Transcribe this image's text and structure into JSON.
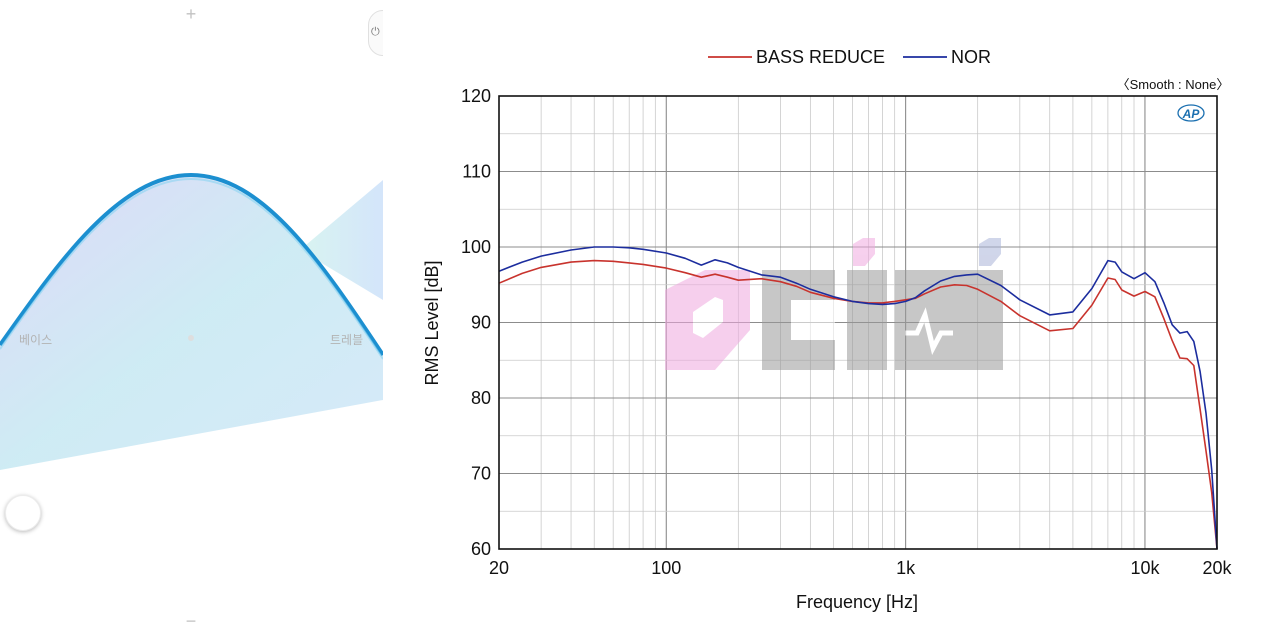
{
  "eq_panel": {
    "plus": "+",
    "minus": "−",
    "bass_label": "베이스",
    "treble_label": "트레블",
    "power_icon": "power-icon",
    "accent": "#1c8fd0"
  },
  "chart_data": {
    "type": "line",
    "xlabel": "Frequency [Hz]",
    "ylabel": "RMS Level [dB]",
    "x_scale": "log",
    "xlim": [
      20,
      20000
    ],
    "ylim": [
      60,
      120
    ],
    "yticks": [
      "60",
      "70",
      "80",
      "90",
      "100",
      "110",
      "120"
    ],
    "xticks": [
      {
        "value": 20,
        "label": "20"
      },
      {
        "value": 100,
        "label": "100"
      },
      {
        "value": 1000,
        "label": "1k"
      },
      {
        "value": 10000,
        "label": "10k"
      },
      {
        "value": 20000,
        "label": "20k"
      }
    ],
    "annotation": "〈Smooth : None〉",
    "badge": "AP",
    "watermark": "CIMI",
    "grid": true,
    "legend_position": "top-center",
    "series": [
      {
        "name": "BASS REDUCE",
        "color": "#c8332d",
        "x": [
          20,
          25,
          30,
          40,
          50,
          60,
          70,
          80,
          100,
          120,
          140,
          160,
          180,
          200,
          250,
          300,
          350,
          400,
          500,
          600,
          700,
          800,
          900,
          1000,
          1100,
          1200,
          1400,
          1600,
          1800,
          2000,
          2500,
          3000,
          4000,
          5000,
          6000,
          7000,
          7500,
          8000,
          9000,
          10000,
          11000,
          12000,
          13000,
          14000,
          15000,
          16000,
          17000,
          18000,
          19000,
          20000
        ],
        "values": [
          95.2,
          96.5,
          97.3,
          98.0,
          98.2,
          98.1,
          97.9,
          97.7,
          97.2,
          96.6,
          96.0,
          96.4,
          96.0,
          95.6,
          95.8,
          95.4,
          94.8,
          94.0,
          93.2,
          92.8,
          92.6,
          92.6,
          92.8,
          93.0,
          93.2,
          93.8,
          94.7,
          95.0,
          94.9,
          94.4,
          92.8,
          90.9,
          88.9,
          89.2,
          92.3,
          95.9,
          95.7,
          94.3,
          93.5,
          94.1,
          93.4,
          90.5,
          87.6,
          85.3,
          85.2,
          84.3,
          78.5,
          73.0,
          67.5,
          60.0
        ]
      },
      {
        "name": "NOR",
        "color": "#1c2d9e",
        "x": [
          20,
          25,
          30,
          40,
          50,
          60,
          70,
          80,
          100,
          120,
          140,
          160,
          180,
          200,
          250,
          300,
          350,
          400,
          500,
          600,
          700,
          800,
          900,
          1000,
          1100,
          1200,
          1400,
          1600,
          1800,
          2000,
          2500,
          3000,
          4000,
          5000,
          6000,
          7000,
          7500,
          8000,
          9000,
          10000,
          11000,
          12000,
          13000,
          14000,
          15000,
          16000,
          17000,
          18000,
          19000,
          20000
        ],
        "values": [
          96.8,
          98.0,
          98.8,
          99.6,
          100.0,
          100.0,
          99.9,
          99.7,
          99.2,
          98.5,
          97.6,
          98.3,
          97.9,
          97.3,
          96.3,
          96.0,
          95.2,
          94.4,
          93.4,
          92.8,
          92.5,
          92.4,
          92.5,
          92.8,
          93.3,
          94.2,
          95.5,
          96.1,
          96.3,
          96.4,
          94.9,
          93.0,
          91.0,
          91.4,
          94.5,
          98.2,
          98.0,
          96.7,
          95.8,
          96.6,
          95.4,
          92.6,
          89.7,
          88.6,
          88.8,
          87.5,
          83.5,
          78.0,
          70.5,
          60.0
        ]
      }
    ]
  }
}
